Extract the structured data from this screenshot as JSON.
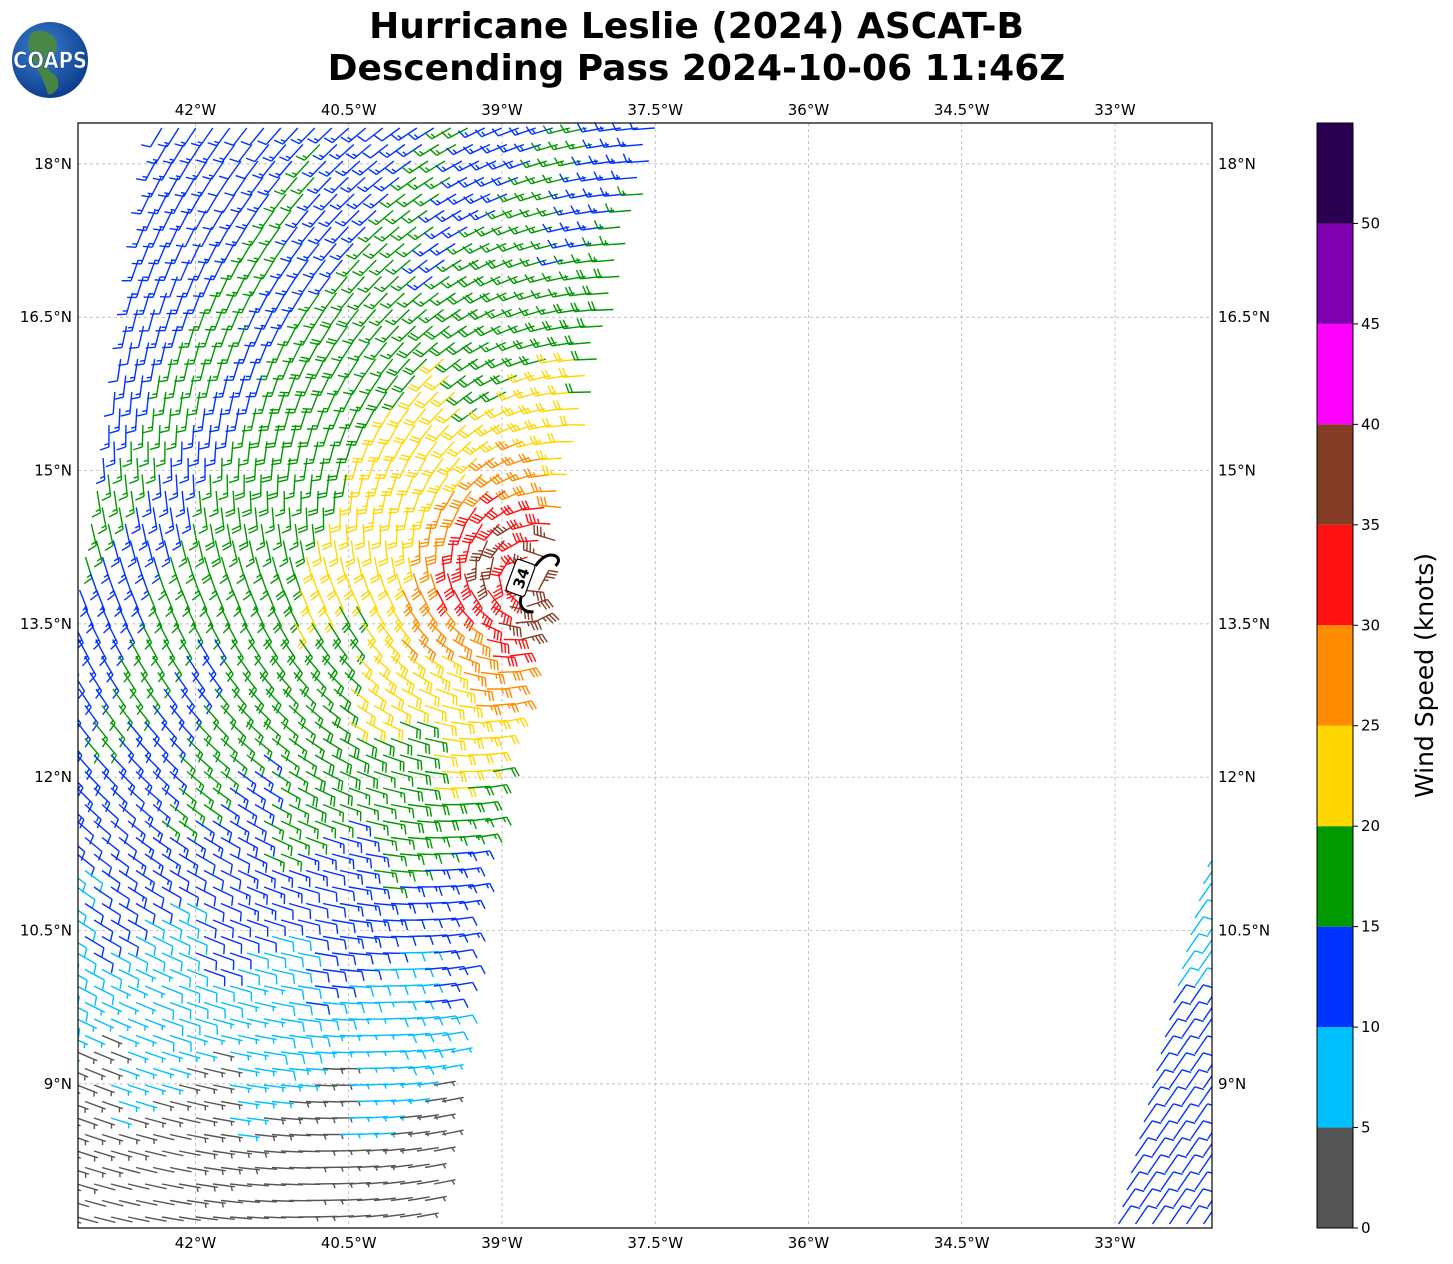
{
  "title": {
    "line1": "Hurricane Leslie (2024) ASCAT-B",
    "line2": "Descending Pass 2024-10-06 11:46Z"
  },
  "logo": {
    "text": "COAPS"
  },
  "map": {
    "lon_range": [
      -43.15,
      -32.05
    ],
    "lat_range": [
      7.59,
      18.4
    ],
    "grid": true,
    "lon_ticks": [
      {
        "value": -42,
        "label": "42°W"
      },
      {
        "value": -40.5,
        "label": "40.5°W"
      },
      {
        "value": -39,
        "label": "39°W"
      },
      {
        "value": -37.5,
        "label": "37.5°W"
      },
      {
        "value": -36,
        "label": "36°W"
      },
      {
        "value": -34.5,
        "label": "34.5°W"
      },
      {
        "value": -33,
        "label": "33°W"
      }
    ],
    "lat_ticks": [
      {
        "value": 18,
        "label": "18°N"
      },
      {
        "value": 16.5,
        "label": "16.5°N"
      },
      {
        "value": 15,
        "label": "15°N"
      },
      {
        "value": 13.5,
        "label": "13.5°N"
      },
      {
        "value": 12,
        "label": "12°N"
      },
      {
        "value": 10.5,
        "label": "10.5°N"
      },
      {
        "value": 9,
        "label": "9°N"
      }
    ],
    "storm_marker": {
      "label": "34",
      "lon": -38.75,
      "lat": 13.95
    }
  },
  "colorbar": {
    "label": "Wind Speed (knots)",
    "levels": [
      0,
      5,
      10,
      15,
      20,
      25,
      30,
      35,
      40,
      45,
      50,
      55
    ],
    "tick_labels": [
      "0",
      "5",
      "10",
      "15",
      "20",
      "25",
      "30",
      "35",
      "40",
      "45",
      "50"
    ],
    "colors": [
      "#555555",
      "#00bfff",
      "#0033ff",
      "#009900",
      "#ffd700",
      "#ff8c00",
      "#ff1111",
      "#843c24",
      "#ff00ff",
      "#8000b0",
      "#2a0050"
    ]
  }
}
